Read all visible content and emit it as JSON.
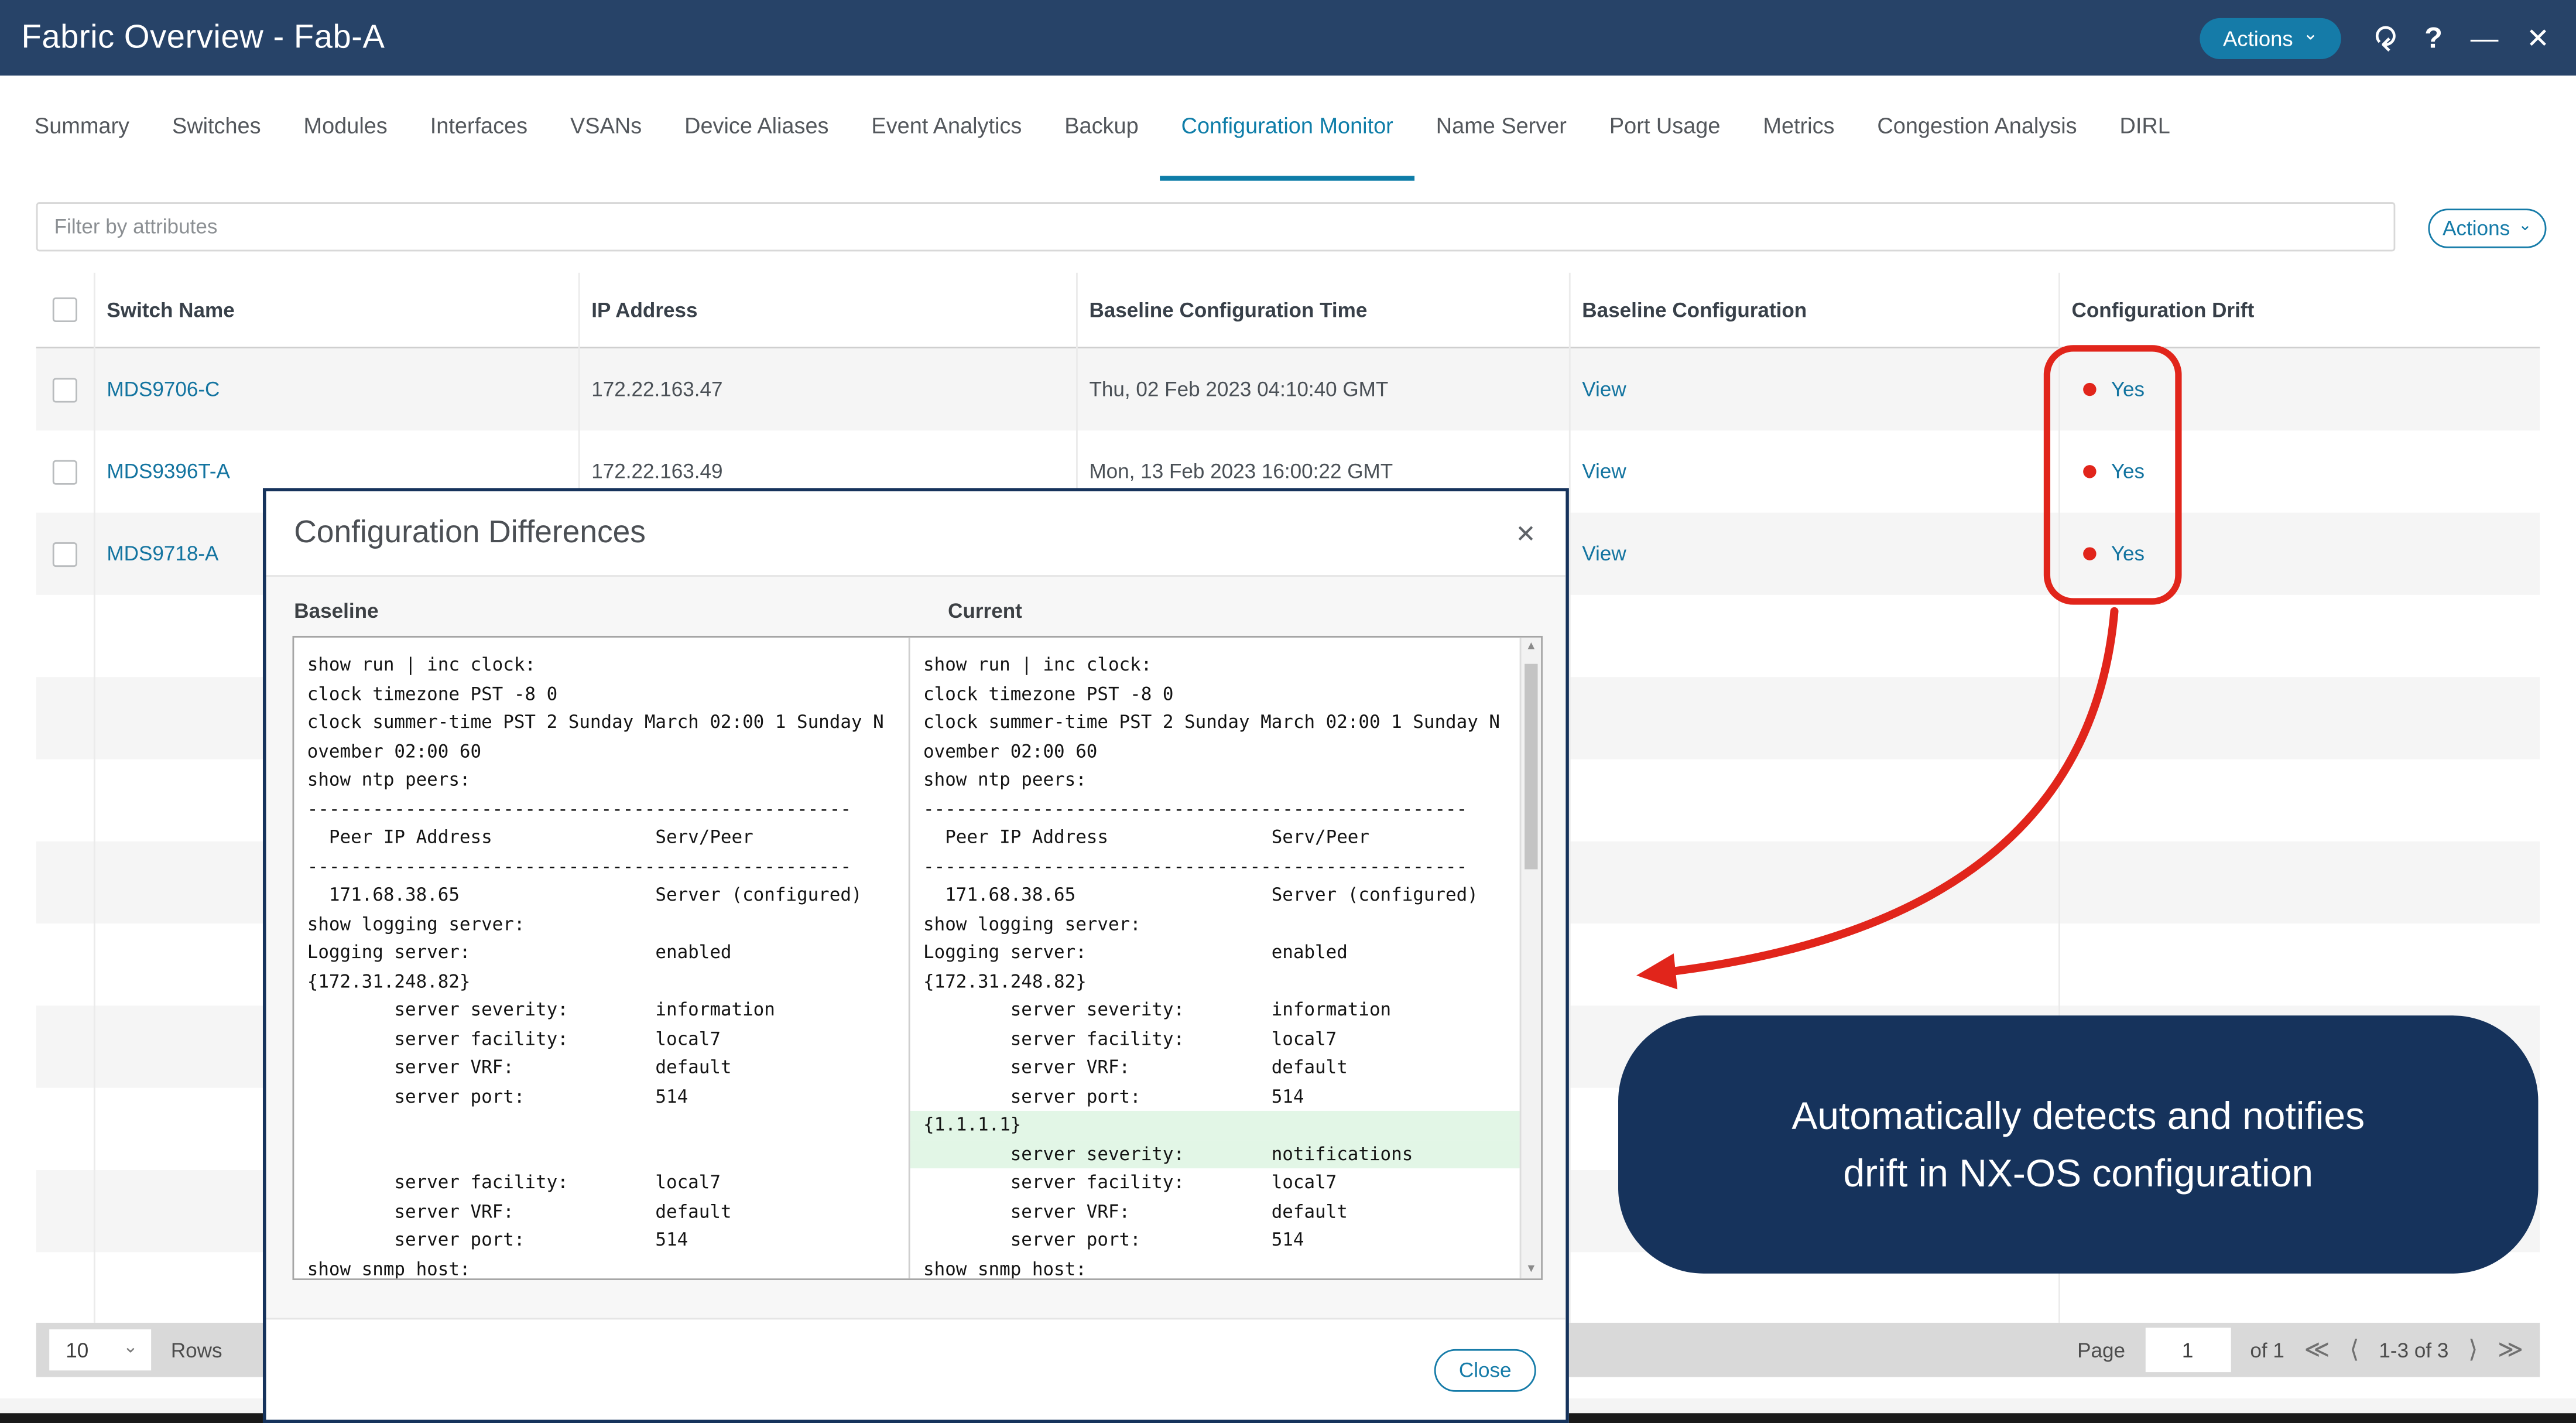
{
  "window": {
    "title": "Fabric Overview - Fab-A",
    "actions_label": "Actions"
  },
  "icons": {
    "dropdown": "⌄",
    "refresh": "⟳",
    "help": "?",
    "minimize": "—",
    "close": "✕",
    "modal_close": "✕",
    "pager_first": "≪",
    "pager_prev": "⟨",
    "pager_next": "⟩",
    "pager_last": "≫",
    "scroll_up": "▲",
    "scroll_down": "▼"
  },
  "tabs": {
    "active_index": 8,
    "items": [
      "Summary",
      "Switches",
      "Modules",
      "Interfaces",
      "VSANs",
      "Device Aliases",
      "Event Analytics",
      "Backup",
      "Configuration Monitor",
      "Name Server",
      "Port Usage",
      "Metrics",
      "Congestion Analysis",
      "DIRL"
    ]
  },
  "toolbar": {
    "filter_placeholder": "Filter by attributes",
    "actions_label": "Actions"
  },
  "table": {
    "columns": [
      "Switch Name",
      "IP Address",
      "Baseline Configuration Time",
      "Baseline Configuration",
      "Configuration Drift"
    ],
    "rows": [
      {
        "switch_name": "MDS9706-C",
        "ip_address": "172.22.163.47",
        "baseline_time": "Thu, 02 Feb 2023 04:10:40 GMT",
        "baseline_config": "View",
        "drift": "Yes"
      },
      {
        "switch_name": "MDS9396T-A",
        "ip_address": "172.22.163.49",
        "baseline_time": "Mon, 13 Feb 2023 16:00:22 GMT",
        "baseline_config": "View",
        "drift": "Yes"
      },
      {
        "switch_name": "MDS9718-A",
        "ip_address": "",
        "baseline_time": "",
        "baseline_config": "View",
        "drift": "Yes"
      }
    ]
  },
  "pagination": {
    "rows_per_page": "10",
    "rows_label": "Rows",
    "page_label": "Page",
    "page_value": "1",
    "of_label": "of 1",
    "range_label": "1-3 of 3"
  },
  "modal": {
    "title": "Configuration Differences",
    "baseline_label": "Baseline",
    "current_label": "Current",
    "close_label": "Close",
    "baseline_lines": [
      {
        "t": "show run | inc clock:",
        "hl": false
      },
      {
        "t": "clock timezone PST -8 0",
        "hl": false
      },
      {
        "t": "clock summer-time PST 2 Sunday March 02:00 1 Sunday N",
        "hl": false
      },
      {
        "t": "ovember 02:00 60",
        "hl": false
      },
      {
        "t": "show ntp peers:",
        "hl": false
      },
      {
        "t": "--------------------------------------------------",
        "hl": false
      },
      {
        "t": "  Peer IP Address               Serv/Peer",
        "hl": false
      },
      {
        "t": "--------------------------------------------------",
        "hl": false
      },
      {
        "t": "  171.68.38.65                  Server (configured)",
        "hl": false
      },
      {
        "t": "show logging server:",
        "hl": false
      },
      {
        "t": "Logging server:                 enabled",
        "hl": false
      },
      {
        "t": "{172.31.248.82}",
        "hl": false
      },
      {
        "t": "        server severity:        information",
        "hl": false
      },
      {
        "t": "        server facility:        local7",
        "hl": false
      },
      {
        "t": "        server VRF:             default",
        "hl": false
      },
      {
        "t": "        server port:            514",
        "hl": false
      },
      {
        "t": "",
        "hl": false
      },
      {
        "t": "",
        "hl": false
      },
      {
        "t": "        server facility:        local7",
        "hl": false
      },
      {
        "t": "        server VRF:             default",
        "hl": false
      },
      {
        "t": "        server port:            514",
        "hl": false
      },
      {
        "t": "show snmp host:",
        "hl": false
      }
    ],
    "current_lines": [
      {
        "t": "show run | inc clock:",
        "hl": false
      },
      {
        "t": "clock timezone PST -8 0",
        "hl": false
      },
      {
        "t": "clock summer-time PST 2 Sunday March 02:00 1 Sunday N",
        "hl": false
      },
      {
        "t": "ovember 02:00 60",
        "hl": false
      },
      {
        "t": "show ntp peers:",
        "hl": false
      },
      {
        "t": "--------------------------------------------------",
        "hl": false
      },
      {
        "t": "  Peer IP Address               Serv/Peer",
        "hl": false
      },
      {
        "t": "--------------------------------------------------",
        "hl": false
      },
      {
        "t": "  171.68.38.65                  Server (configured)",
        "hl": false
      },
      {
        "t": "show logging server:",
        "hl": false
      },
      {
        "t": "Logging server:                 enabled",
        "hl": false
      },
      {
        "t": "{172.31.248.82}",
        "hl": false
      },
      {
        "t": "        server severity:        information",
        "hl": false
      },
      {
        "t": "        server facility:        local7",
        "hl": false
      },
      {
        "t": "        server VRF:             default",
        "hl": false
      },
      {
        "t": "        server port:            514",
        "hl": false
      },
      {
        "t": "{1.1.1.1}",
        "hl": true
      },
      {
        "t": "        server severity:        notifications",
        "hl": true
      },
      {
        "t": "        server facility:        local7",
        "hl": false
      },
      {
        "t": "        server VRF:             default",
        "hl": false
      },
      {
        "t": "        server port:            514",
        "hl": false
      },
      {
        "t": "show snmp host:",
        "hl": false
      }
    ]
  },
  "callout": {
    "line1": "Automatically detects and notifies",
    "line2": "drift in NX-OS configuration"
  },
  "colors": {
    "header_navy": "#274368",
    "callout_navy": "#16335C",
    "accent_teal": "#157BA8",
    "link_teal": "#1374A0",
    "annotation_red": "#E1251B",
    "diff_highlight_green": "#e2f6e6",
    "row_stripe": "#f5f5f5",
    "footer_gray": "#d9d9d9"
  }
}
